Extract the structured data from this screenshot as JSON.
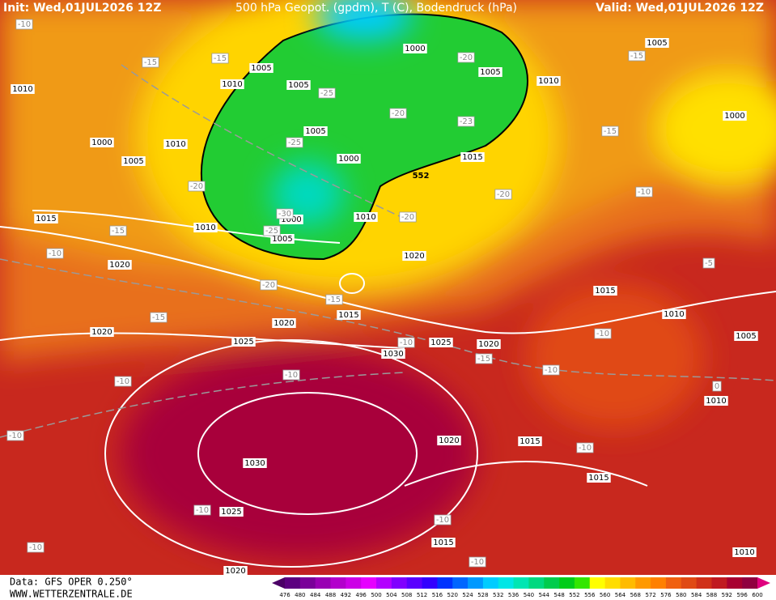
{
  "header": {
    "init": "Init: Wed,01JUL2026 12Z",
    "title": "500 hPa Geopot. (gpdm), T (C), Bodendruck (hPa)",
    "valid": "Valid: Wed,01JUL2026 12Z"
  },
  "footer": {
    "data_source": "Data: GFS OPER 0.250°",
    "website": "WWW.WETTERZENTRALE.DE"
  },
  "contour_label": 552,
  "isobar_labels": [
    1005,
    1010,
    1005,
    1000,
    1005,
    1010,
    1005,
    1010,
    1000,
    1010,
    1005,
    1005,
    1000,
    1015,
    1000,
    1010,
    1000,
    1005,
    1015,
    1010,
    1020,
    1020,
    1015,
    1010,
    1015,
    1020,
    1020,
    1025,
    1030,
    1025,
    1020,
    1005,
    1010,
    1020,
    1015,
    1030,
    1025,
    1015,
    1015,
    1010,
    1020
  ],
  "temperature_labels": [
    -10,
    -15,
    -15,
    -20,
    -15,
    -25,
    -20,
    -23,
    -15,
    -25,
    -20,
    -20,
    -10,
    -20,
    -15,
    -30,
    -25,
    -10,
    -5,
    -20,
    -15,
    -15,
    -10,
    -10,
    -15,
    -10,
    -10,
    -10,
    -10,
    -10,
    -10,
    -10,
    -10,
    -10,
    0
  ],
  "colorbar": {
    "labels": [
      476,
      480,
      484,
      488,
      492,
      496,
      500,
      504,
      508,
      512,
      516,
      520,
      524,
      528,
      532,
      536,
      540,
      544,
      548,
      552,
      556,
      560,
      564,
      568,
      572,
      576,
      580,
      584,
      588,
      592,
      596,
      600
    ],
    "colors": [
      "#4b0066",
      "#5c0080",
      "#7a0099",
      "#9900b3",
      "#b300cc",
      "#cc00e6",
      "#e600ff",
      "#b300ff",
      "#8000ff",
      "#5a00ff",
      "#3300ff",
      "#0033ff",
      "#0066ff",
      "#0099ff",
      "#00ccff",
      "#00e6e6",
      "#00e6b3",
      "#00d980",
      "#00cc4d",
      "#00cc1a",
      "#33e600",
      "#ffff00",
      "#ffdd00",
      "#ffbb00",
      "#ff9900",
      "#ff8000",
      "#f06010",
      "#e04a14",
      "#d03018",
      "#c01a20",
      "#a80030",
      "#900040",
      "#e0007f"
    ]
  }
}
